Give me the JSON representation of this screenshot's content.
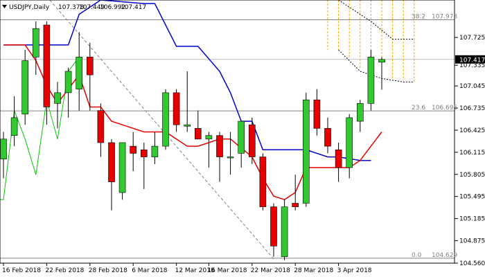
{
  "chart_data": {
    "type": "candlestick",
    "title": "USDJPY,Daily",
    "header_values": [
      "107.378",
      "107.449",
      "106.992",
      "107.417"
    ],
    "current_price_label": "107.417",
    "ylim": [
      104.56,
      108.25
    ],
    "y_ticks": [
      "107.725",
      "107.335",
      "107.045",
      "106.735",
      "106.425",
      "106.115",
      "105.805",
      "105.495",
      "105.185",
      "104.875",
      "104.560"
    ],
    "x_tick_labels": [
      "16 Feb 2018",
      "22 Feb 2018",
      "28 Feb 2018",
      "6 Mar 2018",
      "12 Mar 2018",
      "16 Mar 2018",
      "22 Mar 2018",
      "28 Mar 2018",
      "3 Apr 2018"
    ],
    "x_tick_bar_index": [
      0,
      4,
      8,
      12,
      16,
      19,
      23,
      27,
      31
    ],
    "fib_levels": [
      {
        "ratio": "38.2",
        "value": "107.973",
        "price": 107.973
      },
      {
        "ratio": "23.6",
        "value": "106.695",
        "price": 106.695
      },
      {
        "ratio": "0.0",
        "value": "104.629",
        "price": 104.629
      }
    ],
    "colors": {
      "bull": "#32c832",
      "bear": "#e60000",
      "kijun": "#0000cc",
      "tenkan": "#e60000",
      "chikou": "#00c800",
      "fib": "#808080",
      "cloud": "#ffa500"
    },
    "candles": [
      {
        "o": 106.02,
        "h": 106.4,
        "l": 105.75,
        "c": 106.3
      },
      {
        "o": 106.35,
        "h": 106.9,
        "l": 106.2,
        "c": 106.6
      },
      {
        "o": 106.65,
        "h": 107.55,
        "l": 106.5,
        "c": 107.4
      },
      {
        "o": 107.45,
        "h": 107.95,
        "l": 107.2,
        "c": 107.85
      },
      {
        "o": 107.9,
        "h": 107.95,
        "l": 106.5,
        "c": 106.75
      },
      {
        "o": 106.8,
        "h": 107.1,
        "l": 106.45,
        "c": 106.95
      },
      {
        "o": 106.95,
        "h": 107.3,
        "l": 106.6,
        "c": 107.25
      },
      {
        "o": 107.0,
        "h": 107.8,
        "l": 106.7,
        "c": 107.45
      },
      {
        "o": 107.45,
        "h": 107.65,
        "l": 106.7,
        "c": 107.2
      },
      {
        "o": 106.7,
        "h": 106.8,
        "l": 106.05,
        "c": 106.25
      },
      {
        "o": 106.25,
        "h": 106.3,
        "l": 105.3,
        "c": 105.7
      },
      {
        "o": 105.55,
        "h": 106.25,
        "l": 105.45,
        "c": 106.25
      },
      {
        "o": 106.2,
        "h": 106.4,
        "l": 105.85,
        "c": 106.1
      },
      {
        "o": 106.15,
        "h": 106.25,
        "l": 105.6,
        "c": 106.05
      },
      {
        "o": 106.05,
        "h": 106.4,
        "l": 105.95,
        "c": 106.2
      },
      {
        "o": 106.2,
        "h": 107.0,
        "l": 106.15,
        "c": 106.95
      },
      {
        "o": 106.95,
        "h": 107.0,
        "l": 106.4,
        "c": 106.5
      },
      {
        "o": 106.48,
        "h": 107.25,
        "l": 106.4,
        "c": 106.5
      },
      {
        "o": 106.45,
        "h": 106.7,
        "l": 106.3,
        "c": 106.3
      },
      {
        "o": 106.3,
        "h": 106.4,
        "l": 105.9,
        "c": 106.35
      },
      {
        "o": 106.35,
        "h": 106.4,
        "l": 105.7,
        "c": 106.05
      },
      {
        "o": 106.05,
        "h": 106.4,
        "l": 105.8,
        "c": 106.05
      },
      {
        "o": 106.1,
        "h": 106.55,
        "l": 105.9,
        "c": 106.55
      },
      {
        "o": 106.5,
        "h": 106.6,
        "l": 105.95,
        "c": 106.05
      },
      {
        "o": 106.05,
        "h": 106.1,
        "l": 105.3,
        "c": 105.35
      },
      {
        "o": 105.35,
        "h": 105.4,
        "l": 104.65,
        "c": 104.8
      },
      {
        "o": 104.65,
        "h": 105.45,
        "l": 104.6,
        "c": 105.35
      },
      {
        "o": 105.4,
        "h": 105.8,
        "l": 105.3,
        "c": 105.35
      },
      {
        "o": 105.4,
        "h": 106.95,
        "l": 105.35,
        "c": 106.85
      },
      {
        "o": 106.85,
        "h": 107.0,
        "l": 106.35,
        "c": 106.45
      },
      {
        "o": 106.45,
        "h": 106.6,
        "l": 106.1,
        "c": 106.2
      },
      {
        "o": 106.15,
        "h": 106.25,
        "l": 105.7,
        "c": 105.9
      },
      {
        "o": 105.9,
        "h": 106.65,
        "l": 105.75,
        "c": 106.6
      },
      {
        "o": 106.55,
        "h": 106.85,
        "l": 106.4,
        "c": 106.8
      },
      {
        "o": 106.8,
        "h": 107.55,
        "l": 106.7,
        "c": 107.45
      },
      {
        "o": 107.378,
        "h": 107.449,
        "l": 106.992,
        "c": 107.417
      }
    ],
    "kijun": [
      [
        0,
        107.62
      ],
      [
        6,
        107.62
      ],
      [
        7,
        108.05
      ],
      [
        9,
        108.25
      ],
      [
        13,
        108.2
      ],
      [
        14,
        108.2
      ],
      [
        16,
        107.6
      ],
      [
        18,
        107.6
      ],
      [
        20,
        107.25
      ],
      [
        21,
        106.95
      ],
      [
        22,
        106.55
      ],
      [
        23,
        106.55
      ],
      [
        24,
        106.15
      ],
      [
        26,
        106.15
      ],
      [
        28,
        106.15
      ],
      [
        30,
        106.05
      ],
      [
        31,
        106.05
      ],
      [
        33,
        106.0
      ],
      [
        34,
        106.0
      ]
    ],
    "tenkan": [
      [
        0,
        107.62
      ],
      [
        2,
        107.62
      ],
      [
        3,
        107.4
      ],
      [
        4,
        107.05
      ],
      [
        5,
        106.8
      ],
      [
        6,
        107.0
      ],
      [
        7,
        107.2
      ],
      [
        8,
        106.75
      ],
      [
        9,
        106.75
      ],
      [
        10,
        106.55
      ],
      [
        11,
        106.5
      ],
      [
        13,
        106.4
      ],
      [
        15,
        106.4
      ],
      [
        17,
        106.2
      ],
      [
        18,
        106.2
      ],
      [
        20,
        106.3
      ],
      [
        21,
        106.3
      ],
      [
        23,
        106.05
      ],
      [
        24,
        105.75
      ],
      [
        25,
        105.5
      ],
      [
        26,
        105.45
      ],
      [
        27,
        105.55
      ],
      [
        28,
        105.9
      ],
      [
        30,
        105.9
      ],
      [
        31,
        105.9
      ],
      [
        32,
        105.9
      ],
      [
        33,
        106.0
      ],
      [
        34,
        106.2
      ],
      [
        35,
        106.4
      ]
    ],
    "chikou": [
      [
        -1,
        105.45
      ],
      [
        0,
        105.45
      ],
      [
        1,
        106.7
      ],
      [
        2,
        106.3
      ],
      [
        3,
        105.8
      ],
      [
        4,
        106.85
      ],
      [
        5,
        106.3
      ],
      [
        6,
        107.25
      ],
      [
        7,
        107.45
      ]
    ],
    "cloud_top": [
      [
        31,
        108.25
      ],
      [
        34,
        107.95
      ],
      [
        36,
        107.7
      ],
      [
        38,
        107.7
      ]
    ],
    "cloud_bottom": [
      [
        31,
        107.55
      ],
      [
        33,
        107.25
      ],
      [
        35,
        107.15
      ],
      [
        37,
        107.1
      ],
      [
        38,
        107.1
      ]
    ],
    "cloud_vlines": [
      [
        30,
        108.25,
        107.55
      ],
      [
        31,
        108.25,
        107.55
      ],
      [
        32,
        108.25,
        107.45
      ],
      [
        33,
        108.25,
        107.28
      ],
      [
        34,
        108.25,
        107.22
      ],
      [
        35,
        108.25,
        107.18
      ],
      [
        36,
        108.25,
        107.15
      ],
      [
        37,
        108.25,
        107.12
      ],
      [
        38,
        108.25,
        107.1
      ]
    ],
    "trendline": [
      [
        4,
        108.3
      ],
      [
        25,
        104.62
      ]
    ]
  }
}
